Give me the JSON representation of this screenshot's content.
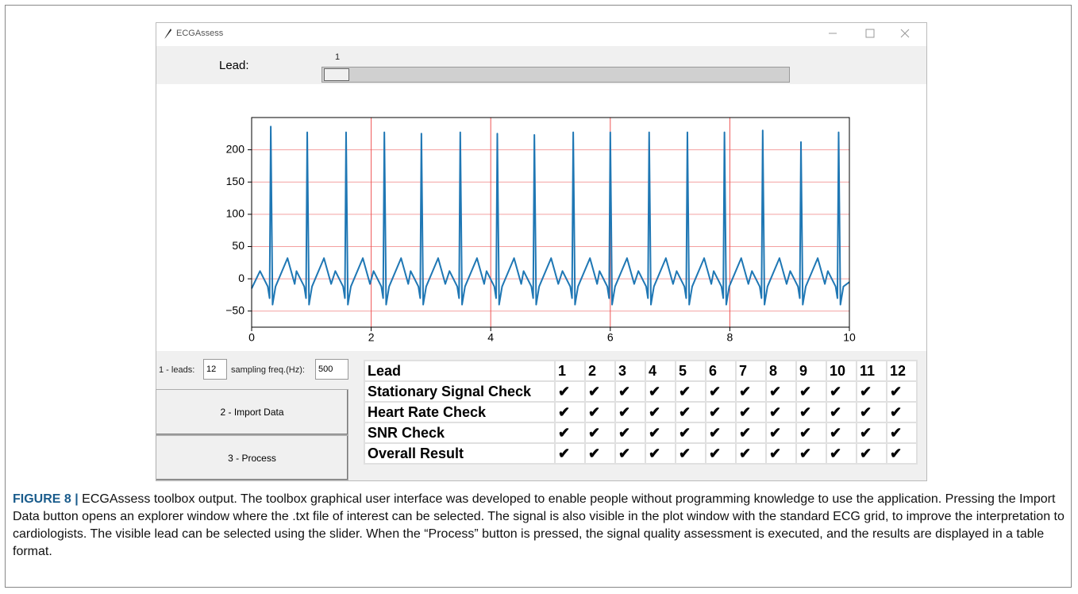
{
  "window": {
    "title": "ECGAssess"
  },
  "slider": {
    "label": "Lead:",
    "value": "1"
  },
  "chart_data": {
    "type": "line",
    "color": "#1f77b4",
    "grid": true,
    "xlim": [
      0,
      10
    ],
    "ylim": [
      -75,
      250
    ],
    "xticks": [
      0,
      2,
      4,
      6,
      8,
      10
    ],
    "yticks": [
      {
        "value": -50,
        "label": "−50"
      },
      0,
      50,
      100,
      150,
      200
    ],
    "x": [
      0,
      0.14,
      0.27,
      0.3,
      0.32,
      0.35,
      0.4,
      0.6,
      0.72,
      0.75,
      0.88,
      0.91,
      0.93,
      0.96,
      1.01,
      1.21,
      1.33,
      1.4,
      1.53,
      1.56,
      1.58,
      1.61,
      1.66,
      1.86,
      1.98,
      2.04,
      2.17,
      2.2,
      2.22,
      2.25,
      2.3,
      2.5,
      2.62,
      2.66,
      2.79,
      2.82,
      2.84,
      2.87,
      2.92,
      3.12,
      3.24,
      3.31,
      3.44,
      3.47,
      3.49,
      3.52,
      3.57,
      3.77,
      3.89,
      3.93,
      4.06,
      4.09,
      4.11,
      4.14,
      4.19,
      4.39,
      4.51,
      4.55,
      4.68,
      4.71,
      4.73,
      4.76,
      4.81,
      5.01,
      5.13,
      5.2,
      5.33,
      5.36,
      5.38,
      5.41,
      5.46,
      5.66,
      5.78,
      5.82,
      5.95,
      5.98,
      6.0,
      6.03,
      6.08,
      6.28,
      6.4,
      6.47,
      6.6,
      6.63,
      6.65,
      6.68,
      6.73,
      6.93,
      7.05,
      7.11,
      7.24,
      7.27,
      7.29,
      7.32,
      7.37,
      7.57,
      7.69,
      7.73,
      7.86,
      7.89,
      7.91,
      7.94,
      7.99,
      8.19,
      8.31,
      8.37,
      8.5,
      8.53,
      8.55,
      8.58,
      8.63,
      8.83,
      8.95,
      9.01,
      9.14,
      9.17,
      9.19,
      9.22,
      9.27,
      9.47,
      9.59,
      9.64,
      9.77,
      9.8,
      9.82,
      9.85,
      9.9,
      10
    ],
    "values": [
      -15,
      12,
      -12,
      -30,
      236,
      -40,
      -12,
      32,
      -8,
      12,
      -12,
      -30,
      227,
      -40,
      -12,
      32,
      -8,
      12,
      -12,
      -30,
      227,
      -40,
      -12,
      32,
      -8,
      12,
      -12,
      -30,
      227,
      -40,
      -12,
      32,
      -8,
      12,
      -12,
      -30,
      225,
      -40,
      -12,
      32,
      -8,
      12,
      -12,
      -30,
      227,
      -40,
      -12,
      32,
      -8,
      12,
      -12,
      -30,
      225,
      -40,
      -12,
      32,
      -8,
      12,
      -12,
      -30,
      223,
      -40,
      -12,
      32,
      -8,
      12,
      -12,
      -30,
      227,
      -40,
      -12,
      32,
      -8,
      12,
      -12,
      -30,
      227,
      -40,
      -12,
      32,
      -8,
      12,
      -12,
      -30,
      227,
      -40,
      -12,
      32,
      -8,
      12,
      -12,
      -30,
      227,
      -40,
      -12,
      32,
      -8,
      12,
      -12,
      -30,
      227,
      -40,
      -12,
      32,
      -8,
      12,
      -12,
      -30,
      230,
      -40,
      -12,
      32,
      -8,
      12,
      -12,
      -30,
      212,
      -40,
      -12,
      32,
      -8,
      12,
      -12,
      -30,
      227,
      -40,
      -12,
      -5
    ]
  },
  "controls": {
    "leads_label": "1 - leads:",
    "leads_value": "12",
    "freq_label": "sampling freq.(Hz):",
    "freq_value": "500",
    "import_button": "2 - Import Data",
    "process_button": "3 - Process"
  },
  "table": {
    "header": [
      "Lead",
      "1",
      "2",
      "3",
      "4",
      "5",
      "6",
      "7",
      "8",
      "9",
      "10",
      "11",
      "12"
    ],
    "rows": [
      [
        "Stationary Signal Check",
        "✔",
        "✔",
        "✔",
        "✔",
        "✔",
        "✔",
        "✔",
        "✔",
        "✔",
        "✔",
        "✔",
        "✔"
      ],
      [
        "Heart Rate Check",
        "✔",
        "✔",
        "✔",
        "✔",
        "✔",
        "✔",
        "✔",
        "✔",
        "✔",
        "✔",
        "✔",
        "✔"
      ],
      [
        "SNR Check",
        "✔",
        "✔",
        "✔",
        "✔",
        "✔",
        "✔",
        "✔",
        "✔",
        "✔",
        "✔",
        "✔",
        "✔"
      ],
      [
        "Overall Result",
        "✔",
        "✔",
        "✔",
        "✔",
        "✔",
        "✔",
        "✔",
        "✔",
        "✔",
        "✔",
        "✔",
        "✔"
      ]
    ]
  },
  "caption": {
    "label": "FIGURE 8 |",
    "text": "ECGAssess toolbox output. The toolbox graphical user interface was developed to enable people without programming knowledge to use the application. Pressing the Import Data button opens an explorer window where the .txt file of interest can be selected. The signal is also visible in the plot window with the standard ECG grid, to improve the interpretation to cardiologists. The visible lead can be selected using the slider. When the “Process” button is pressed, the signal quality assessment is executed, and the results are displayed in a table format."
  }
}
